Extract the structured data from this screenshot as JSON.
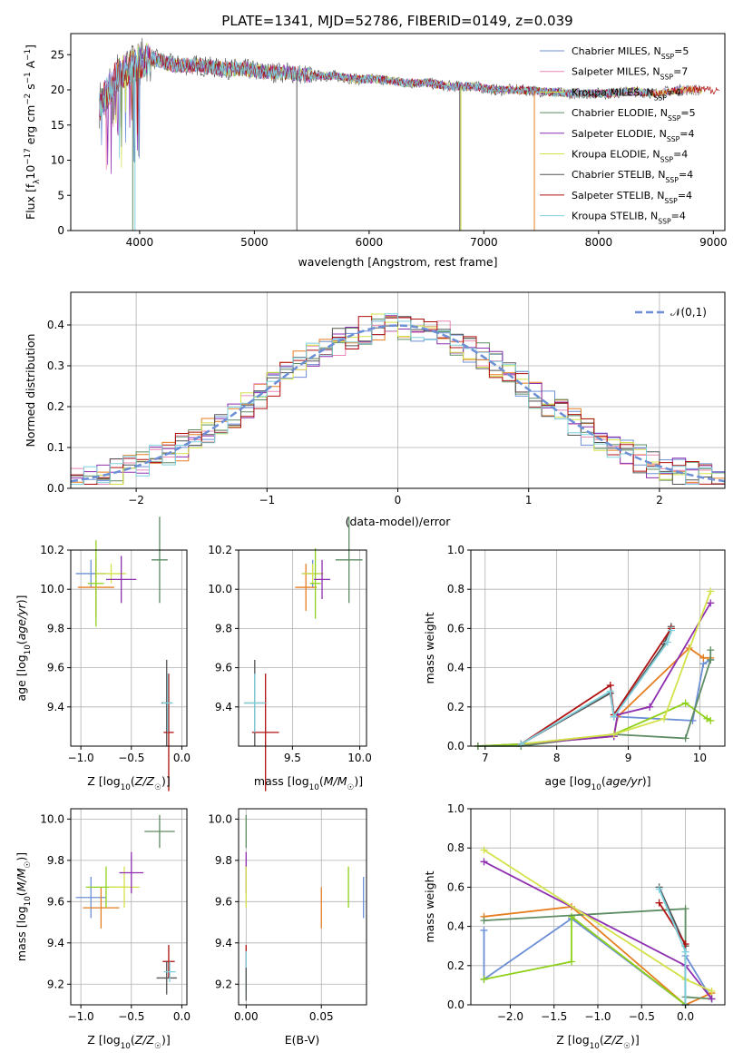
{
  "figure_title": "PLATE=1341, MJD=52786, FIBERID=0149, z=0.039",
  "colors": [
    "#6c8fd6",
    "#e67e22",
    "#8fd11a",
    "#5e8c63",
    "#8e2fb0",
    "#d4e24a",
    "#555555",
    "#b01010",
    "#7fd0dd"
  ],
  "chart_data": [
    {
      "type": "line",
      "title": "PLATE=1341, MJD=52786, FIBERID=0149, z=0.039",
      "xlabel": "wavelength [Angstrom, rest frame]",
      "ylabel": "Flux [f_λ 10^-17 erg cm^-2 s^-1 A^-1]",
      "xlim": [
        3400,
        9100
      ],
      "ylim": [
        0,
        28
      ],
      "xticks": [
        4000,
        5000,
        6000,
        7000,
        8000,
        9000
      ],
      "yticks": [
        0,
        5,
        10,
        15,
        20,
        25
      ],
      "grid": false,
      "legend_position": "top-right",
      "legend": [
        {
          "label": "Chabrier MILES, N_SSP=5",
          "color": "#6c8fd6"
        },
        {
          "label": "Salpeter MILES, N_SSP=7",
          "color": "#e887b6"
        },
        {
          "label": "Kroupa MILES, N_SSP=4",
          "color": "#d4e24a"
        },
        {
          "label": "Chabrier ELODIE, N_SSP=5",
          "color": "#5e8c63"
        },
        {
          "label": "Salpeter ELODIE, N_SSP=4",
          "color": "#8e2fb0"
        },
        {
          "label": "Kroupa ELODIE, N_SSP=4",
          "color": "#d4e24a"
        },
        {
          "label": "Chabrier STELIB, N_SSP=4",
          "color": "#555555"
        },
        {
          "label": "Salpeter STELIB, N_SSP=4",
          "color": "#b01010"
        },
        {
          "label": "Kroupa STELIB, N_SSP=4",
          "color": "#7fd0dd"
        }
      ],
      "continuum": {
        "x": [
          3650,
          3700,
          3800,
          3900,
          4000,
          4100,
          4200,
          4300,
          4500,
          4700,
          4900,
          5100,
          5300,
          5500,
          5700,
          5900,
          6100,
          6300,
          6500,
          6700,
          6900,
          7100,
          7300,
          7500,
          7700,
          7900,
          8100,
          8300,
          8500,
          8700,
          8900
        ],
        "y": [
          18,
          19,
          22,
          23,
          24,
          24.5,
          24,
          23.5,
          23.5,
          23,
          23,
          22.5,
          22.5,
          22,
          22,
          21.5,
          21.5,
          21,
          21,
          20.5,
          20.5,
          20,
          20,
          19.8,
          19.5,
          19.5,
          19.5,
          19.8,
          19.5,
          20,
          20
        ]
      }
    },
    {
      "type": "line",
      "xlabel": "(data-model)/error",
      "ylabel": "Normed distribution",
      "xlim": [
        -2.5,
        2.5
      ],
      "ylim": [
        0,
        0.48
      ],
      "xticks": [
        -2,
        -1,
        0,
        1,
        2
      ],
      "yticks": [
        0.0,
        0.1,
        0.2,
        0.3,
        0.4
      ],
      "grid": true,
      "legend": "𝒩(0,1)",
      "legend_position": "top-right",
      "bin_start": -2.5,
      "bin_width": 0.1,
      "gaussian": {
        "mu": 0,
        "sigma": 1
      }
    },
    {
      "type": "scatter",
      "xlabel": "Z [log10(Z/Z☉)]",
      "ylabel": "age  [log10(age/yr)]",
      "xlim": [
        -1.1,
        0.05
      ],
      "ylim": [
        9.2,
        10.2
      ],
      "xticks": [
        -1.0,
        -0.5,
        0.0
      ],
      "yticks": [
        9.4,
        9.6,
        9.8,
        10.0,
        10.2
      ],
      "grid": true,
      "points": [
        {
          "x": -0.9,
          "y": 10.08,
          "xerr": 0.15,
          "yerr": 0.07,
          "c": 0
        },
        {
          "x": -0.85,
          "y": 10.01,
          "xerr": 0.18,
          "yerr": 0.15,
          "c": 1
        },
        {
          "x": -0.7,
          "y": 10.08,
          "xerr": 0.15,
          "yerr": 0.05,
          "c": 5
        },
        {
          "x": -0.85,
          "y": 10.03,
          "xerr": 0.08,
          "yerr": 0.22,
          "c": 2
        },
        {
          "x": -0.6,
          "y": 10.05,
          "xerr": 0.15,
          "yerr": 0.12,
          "c": 4
        },
        {
          "x": -0.22,
          "y": 10.15,
          "xerr": 0.08,
          "yerr": 0.22,
          "c": 3
        },
        {
          "x": -0.15,
          "y": 9.42,
          "xerr": 0.05,
          "yerr": 0.22,
          "c": 6
        },
        {
          "x": -0.13,
          "y": 9.27,
          "xerr": 0.05,
          "yerr": 0.3,
          "c": 7
        },
        {
          "x": -0.14,
          "y": 9.42,
          "xerr": 0.05,
          "yerr": 0.15,
          "c": 8
        }
      ]
    },
    {
      "type": "scatter",
      "xlabel": "mass [log10(M/M☉)]",
      "xlim": [
        9.1,
        10.05
      ],
      "ylim": [
        9.2,
        10.2
      ],
      "xticks": [
        9.5,
        10.0
      ],
      "yticks": [
        9.4,
        9.6,
        9.8,
        10.0,
        10.2
      ],
      "grid": true,
      "points": [
        {
          "x": 9.65,
          "y": 10.08,
          "xerr": 0.08,
          "yerr": 0.07,
          "c": 0
        },
        {
          "x": 9.6,
          "y": 10.01,
          "xerr": 0.08,
          "yerr": 0.12,
          "c": 1
        },
        {
          "x": 9.65,
          "y": 10.08,
          "xerr": 0.08,
          "yerr": 0.05,
          "c": 5
        },
        {
          "x": 9.67,
          "y": 10.03,
          "xerr": 0.04,
          "yerr": 0.18,
          "c": 2
        },
        {
          "x": 9.72,
          "y": 10.05,
          "xerr": 0.06,
          "yerr": 0.1,
          "c": 4
        },
        {
          "x": 9.92,
          "y": 10.15,
          "xerr": 0.1,
          "yerr": 0.22,
          "c": 3
        },
        {
          "x": 9.22,
          "y": 9.42,
          "xerr": 0.08,
          "yerr": 0.22,
          "c": 6
        },
        {
          "x": 9.3,
          "y": 9.27,
          "xerr": 0.1,
          "yerr": 0.3,
          "c": 7
        },
        {
          "x": 9.22,
          "y": 9.42,
          "xerr": 0.08,
          "yerr": 0.15,
          "c": 8
        }
      ]
    },
    {
      "type": "line",
      "xlabel": "age  [log10(age/yr)]",
      "ylabel": "mass weight",
      "xlim": [
        6.8,
        10.35
      ],
      "ylim": [
        0,
        1.0
      ],
      "xticks": [
        7,
        8,
        9,
        10
      ],
      "yticks": [
        0.0,
        0.2,
        0.4,
        0.6,
        0.8,
        1.0
      ],
      "grid": true,
      "series": [
        {
          "c": 0,
          "x": [
            6.9,
            7.5,
            8.8,
            8.85,
            9.9,
            10.05,
            10.15
          ],
          "y": [
            0.0,
            0.01,
            0.05,
            0.15,
            0.13,
            0.42,
            0.44
          ]
        },
        {
          "c": 1,
          "x": [
            6.9,
            7.5,
            8.8,
            8.85,
            9.85,
            10.05,
            10.15
          ],
          "y": [
            0.0,
            0.01,
            0.05,
            0.15,
            0.5,
            0.45,
            0.45
          ]
        },
        {
          "c": 2,
          "x": [
            6.9,
            7.5,
            8.8,
            9.8,
            10.1,
            10.15
          ],
          "y": [
            0.0,
            0.01,
            0.06,
            0.22,
            0.14,
            0.13
          ]
        },
        {
          "c": 3,
          "x": [
            6.9,
            7.5,
            8.8,
            9.8,
            10.15,
            10.15
          ],
          "y": [
            0.0,
            0.0,
            0.06,
            0.04,
            0.44,
            0.49
          ]
        },
        {
          "c": 4,
          "x": [
            7.5,
            8.8,
            8.85,
            9.3,
            10.15
          ],
          "y": [
            0.01,
            0.05,
            0.16,
            0.2,
            0.73
          ]
        },
        {
          "c": 5,
          "x": [
            7.5,
            8.8,
            9.5,
            10.15
          ],
          "y": [
            0.01,
            0.06,
            0.14,
            0.79
          ]
        },
        {
          "c": 6,
          "x": [
            7.5,
            8.75,
            8.8,
            9.5,
            9.6
          ],
          "y": [
            0.01,
            0.27,
            0.15,
            0.52,
            0.61
          ]
        },
        {
          "c": 7,
          "x": [
            7.5,
            8.75,
            8.8,
            9.6
          ],
          "y": [
            0.01,
            0.31,
            0.16,
            0.6
          ]
        },
        {
          "c": 8,
          "x": [
            7.5,
            8.75,
            8.8,
            9.55,
            9.6
          ],
          "y": [
            0.01,
            0.28,
            0.15,
            0.53,
            0.59
          ]
        }
      ]
    },
    {
      "type": "scatter",
      "xlabel": "Z [log10(Z/Z☉)]",
      "ylabel": "mass [log10(M/M☉)]",
      "xlim": [
        -1.1,
        0.05
      ],
      "ylim": [
        9.1,
        10.05
      ],
      "xticks": [
        -1.0,
        -0.5,
        0.0
      ],
      "yticks": [
        9.2,
        9.4,
        9.6,
        9.8,
        10.0
      ],
      "grid": true,
      "points": [
        {
          "x": -0.9,
          "y": 9.62,
          "xerr": 0.15,
          "yerr": 0.1,
          "c": 0
        },
        {
          "x": -0.8,
          "y": 9.57,
          "xerr": 0.18,
          "yerr": 0.1,
          "c": 1
        },
        {
          "x": -0.75,
          "y": 9.67,
          "xerr": 0.2,
          "yerr": 0.1,
          "c": 2
        },
        {
          "x": -0.57,
          "y": 9.67,
          "xerr": 0.15,
          "yerr": 0.1,
          "c": 5
        },
        {
          "x": -0.5,
          "y": 9.74,
          "xerr": 0.12,
          "yerr": 0.1,
          "c": 4
        },
        {
          "x": -0.22,
          "y": 9.94,
          "xerr": 0.15,
          "yerr": 0.08,
          "c": 3
        },
        {
          "x": -0.13,
          "y": 9.31,
          "xerr": 0.06,
          "yerr": 0.08,
          "c": 7
        },
        {
          "x": -0.15,
          "y": 9.23,
          "xerr": 0.1,
          "yerr": 0.08,
          "c": 6
        },
        {
          "x": -0.12,
          "y": 9.26,
          "xerr": 0.06,
          "yerr": 0.05,
          "c": 8
        }
      ]
    },
    {
      "type": "scatter",
      "xlabel": "E(B-V)",
      "xlim": [
        -0.005,
        0.08
      ],
      "ylim": [
        9.1,
        10.05
      ],
      "xticks": [
        0.0,
        0.05
      ],
      "yticks": [
        9.2,
        9.4,
        9.6,
        9.8,
        10.0
      ],
      "grid": true,
      "points": [
        {
          "x": 0.0,
          "y": 9.94,
          "xerr": 0.0,
          "yerr": 0.08,
          "c": 3
        },
        {
          "x": 0.0,
          "y": 9.74,
          "xerr": 0.0,
          "yerr": 0.1,
          "c": 4
        },
        {
          "x": 0.0,
          "y": 9.67,
          "xerr": 0.0,
          "yerr": 0.1,
          "c": 5
        },
        {
          "x": 0.0,
          "y": 9.31,
          "xerr": 0.0,
          "yerr": 0.08,
          "c": 7
        },
        {
          "x": 0.0,
          "y": 9.26,
          "xerr": 0.0,
          "yerr": 0.1,
          "c": 8
        },
        {
          "x": 0.0,
          "y": 9.2,
          "xerr": 0.0,
          "yerr": 0.08,
          "c": 6
        },
        {
          "x": 0.05,
          "y": 9.57,
          "xerr": 0.0,
          "yerr": 0.1,
          "c": 1
        },
        {
          "x": 0.068,
          "y": 9.67,
          "xerr": 0.0,
          "yerr": 0.1,
          "c": 2
        },
        {
          "x": 0.078,
          "y": 9.62,
          "xerr": 0.0,
          "yerr": 0.1,
          "c": 0
        }
      ]
    },
    {
      "type": "line",
      "xlabel": "Z [log10(Z/Z☉)]",
      "ylabel": "mass weight",
      "xlim": [
        -2.45,
        0.45
      ],
      "ylim": [
        0,
        1.0
      ],
      "xticks": [
        -2.0,
        -1.5,
        -1.0,
        -0.5,
        0.0
      ],
      "yticks": [
        0.0,
        0.2,
        0.4,
        0.6,
        0.8,
        1.0
      ],
      "grid": true,
      "series": [
        {
          "c": 0,
          "x": [
            -2.3,
            -2.3,
            -1.3,
            0.0,
            0.0,
            0.3
          ],
          "y": [
            0.38,
            0.13,
            0.44,
            0.0,
            0.25,
            0.03
          ]
        },
        {
          "c": 1,
          "x": [
            -2.3,
            -1.3,
            0.0,
            0.3
          ],
          "y": [
            0.45,
            0.5,
            0.0,
            0.06
          ]
        },
        {
          "c": 2,
          "x": [
            -2.3,
            -1.3,
            -1.3,
            0.0
          ],
          "y": [
            0.13,
            0.22,
            0.45,
            0.0
          ]
        },
        {
          "c": 3,
          "x": [
            -2.3,
            0.0,
            0.0,
            0.3
          ],
          "y": [
            0.43,
            0.49,
            0.04,
            0.03
          ]
        },
        {
          "c": 4,
          "x": [
            -2.3,
            0.0,
            0.3
          ],
          "y": [
            0.73,
            0.2,
            0.03
          ]
        },
        {
          "c": 5,
          "x": [
            -2.3,
            0.0,
            0.3
          ],
          "y": [
            0.79,
            0.13,
            0.07
          ]
        },
        {
          "c": 6,
          "x": [
            -0.3,
            0.0,
            0.0
          ],
          "y": [
            0.6,
            0.3,
            0.0
          ]
        },
        {
          "c": 7,
          "x": [
            -0.3,
            0.0
          ],
          "y": [
            0.52,
            0.31
          ]
        },
        {
          "c": 8,
          "x": [
            -0.3,
            0.0,
            0.0
          ],
          "y": [
            0.59,
            0.27,
            0.0
          ]
        }
      ]
    }
  ]
}
